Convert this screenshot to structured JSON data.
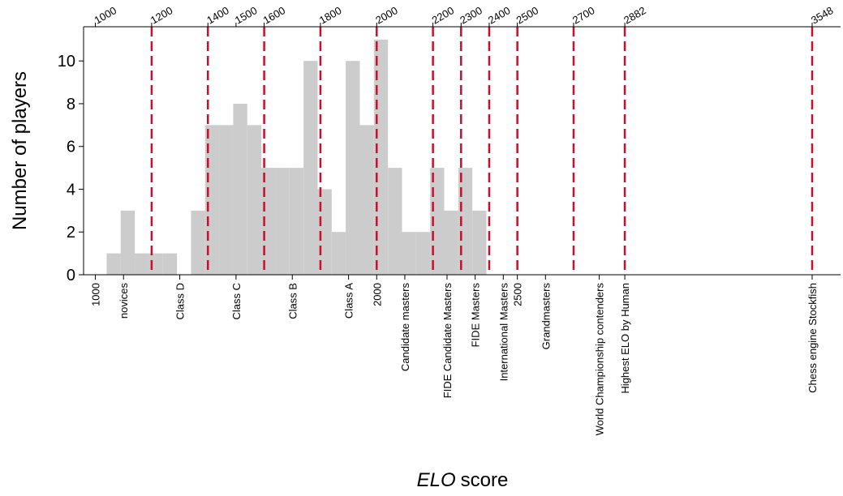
{
  "chart_data": {
    "type": "histogram",
    "ylabel": "Number of players",
    "xlabel": [
      "ELO",
      "score"
    ],
    "bins": [
      1040,
      1090,
      1140,
      1190,
      1240,
      1290,
      1340,
      1390,
      1440,
      1490,
      1540,
      1590,
      1640,
      1690,
      1740,
      1790,
      1840,
      1890,
      1940,
      1990,
      2040,
      2090,
      2140,
      2190,
      2240,
      2290,
      2340,
      2390
    ],
    "values": [
      1,
      3,
      1,
      1,
      1,
      0,
      3,
      7,
      7,
      8,
      7,
      5,
      5,
      5,
      10,
      4,
      2,
      10,
      7,
      11,
      5,
      2,
      2,
      5,
      3,
      5,
      3
    ],
    "color": "#cccccc",
    "xlim": [
      958,
      3649
    ],
    "ylim": [
      0,
      11.6
    ],
    "yticks": [
      0,
      2,
      4,
      6,
      8,
      10
    ],
    "xticks": [
      1000,
      {
        "value": 1100,
        "label": "novices"
      },
      {
        "value": 1300,
        "label": "Class D"
      },
      {
        "value": 1500,
        "label": "Class C"
      },
      {
        "value": 1700,
        "label": "Class B"
      },
      {
        "value": 1900,
        "label": "Class A"
      },
      2000,
      {
        "value": 2100,
        "label": "Candidate masters"
      },
      {
        "value": 2250,
        "label": "FIDE Candidate Masters"
      },
      {
        "value": 2350,
        "label": "FIDE Masters"
      },
      {
        "value": 2450,
        "label": "International Masters"
      },
      2500,
      {
        "value": 2600,
        "label": "Grandmasters"
      },
      {
        "value": 2791,
        "label": "World Championship contenders"
      },
      {
        "value": 2882,
        "label": "Highest ELO by Human"
      },
      {
        "value": 3548,
        "label": "Chess engine Stockfish"
      }
    ],
    "top_xticks": [
      1000,
      1200,
      1400,
      1500,
      1600,
      1800,
      2000,
      2200,
      2300,
      2400,
      2500,
      2700,
      2882,
      3548
    ],
    "vlines": [
      1200,
      1400,
      1600,
      1800,
      2000,
      2200,
      2300,
      2400,
      2500,
      2700,
      2882,
      3548
    ],
    "vline_color": "#c8102e"
  }
}
